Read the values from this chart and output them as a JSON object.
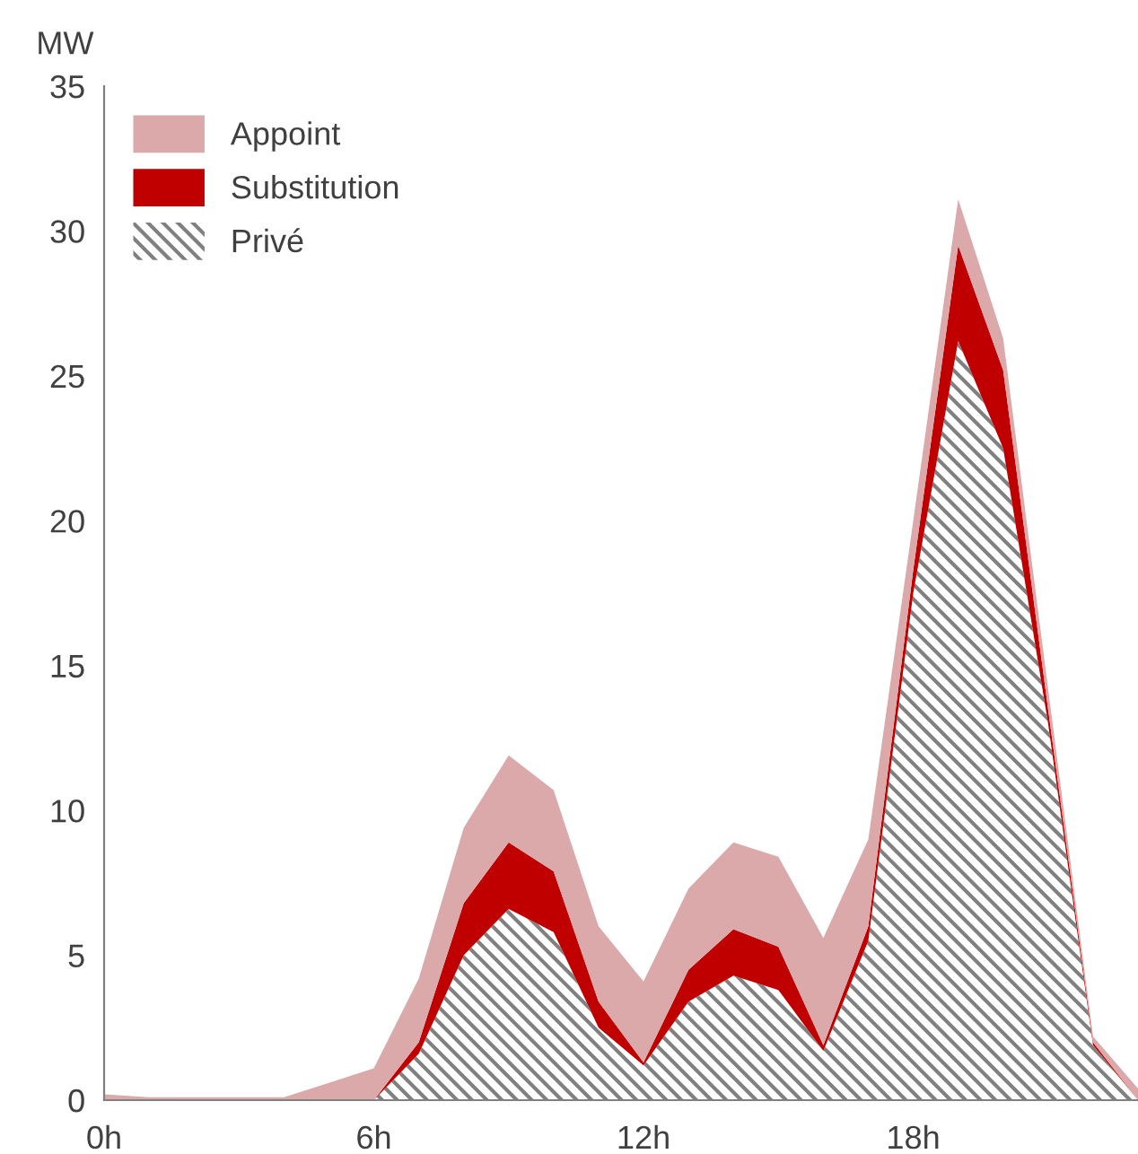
{
  "chart_data": {
    "type": "area",
    "stacked": true,
    "ylabel": "MW",
    "x": [
      0,
      1,
      2,
      3,
      4,
      5,
      6,
      7,
      8,
      9,
      10,
      11,
      12,
      13,
      14,
      15,
      16,
      17,
      18,
      19,
      20,
      21,
      22,
      23
    ],
    "series": [
      {
        "name": "Privé",
        "color": "#808080",
        "values": [
          0,
          0,
          0,
          0,
          0,
          0,
          0,
          1.6,
          5.0,
          6.6,
          5.8,
          2.5,
          1.2,
          3.4,
          4.3,
          3.8,
          1.7,
          5.5,
          17.5,
          26.2,
          22.5,
          13.0,
          1.9,
          0
        ]
      },
      {
        "name": "Substitution",
        "color": "#c00000",
        "values": [
          0,
          0,
          0,
          0,
          0,
          0,
          0,
          0.4,
          1.8,
          2.3,
          2.1,
          0.9,
          0.1,
          1.1,
          1.6,
          1.5,
          0.2,
          0.5,
          0.8,
          3.3,
          2.7,
          0.5,
          0.1,
          0
        ]
      },
      {
        "name": "Appoint",
        "color": "#dba9aa",
        "values": [
          0.2,
          0.1,
          0.1,
          0.1,
          0.1,
          0.6,
          1.1,
          2.2,
          2.6,
          3.0,
          2.8,
          2.6,
          2.8,
          2.8,
          3.0,
          3.1,
          3.7,
          3.0,
          1.7,
          1.6,
          1.1,
          0.7,
          0.2,
          0.4
        ]
      }
    ],
    "xlim": [
      0,
      23
    ],
    "ylim": [
      0,
      35
    ],
    "xticks": [
      {
        "value": 0,
        "label": "0h"
      },
      {
        "value": 6,
        "label": "6h"
      },
      {
        "value": 12,
        "label": "12h"
      },
      {
        "value": 18,
        "label": "18h"
      }
    ],
    "yticks": [
      0,
      5,
      10,
      15,
      20,
      25,
      30,
      35
    ],
    "grid": false,
    "legend": "top left"
  }
}
